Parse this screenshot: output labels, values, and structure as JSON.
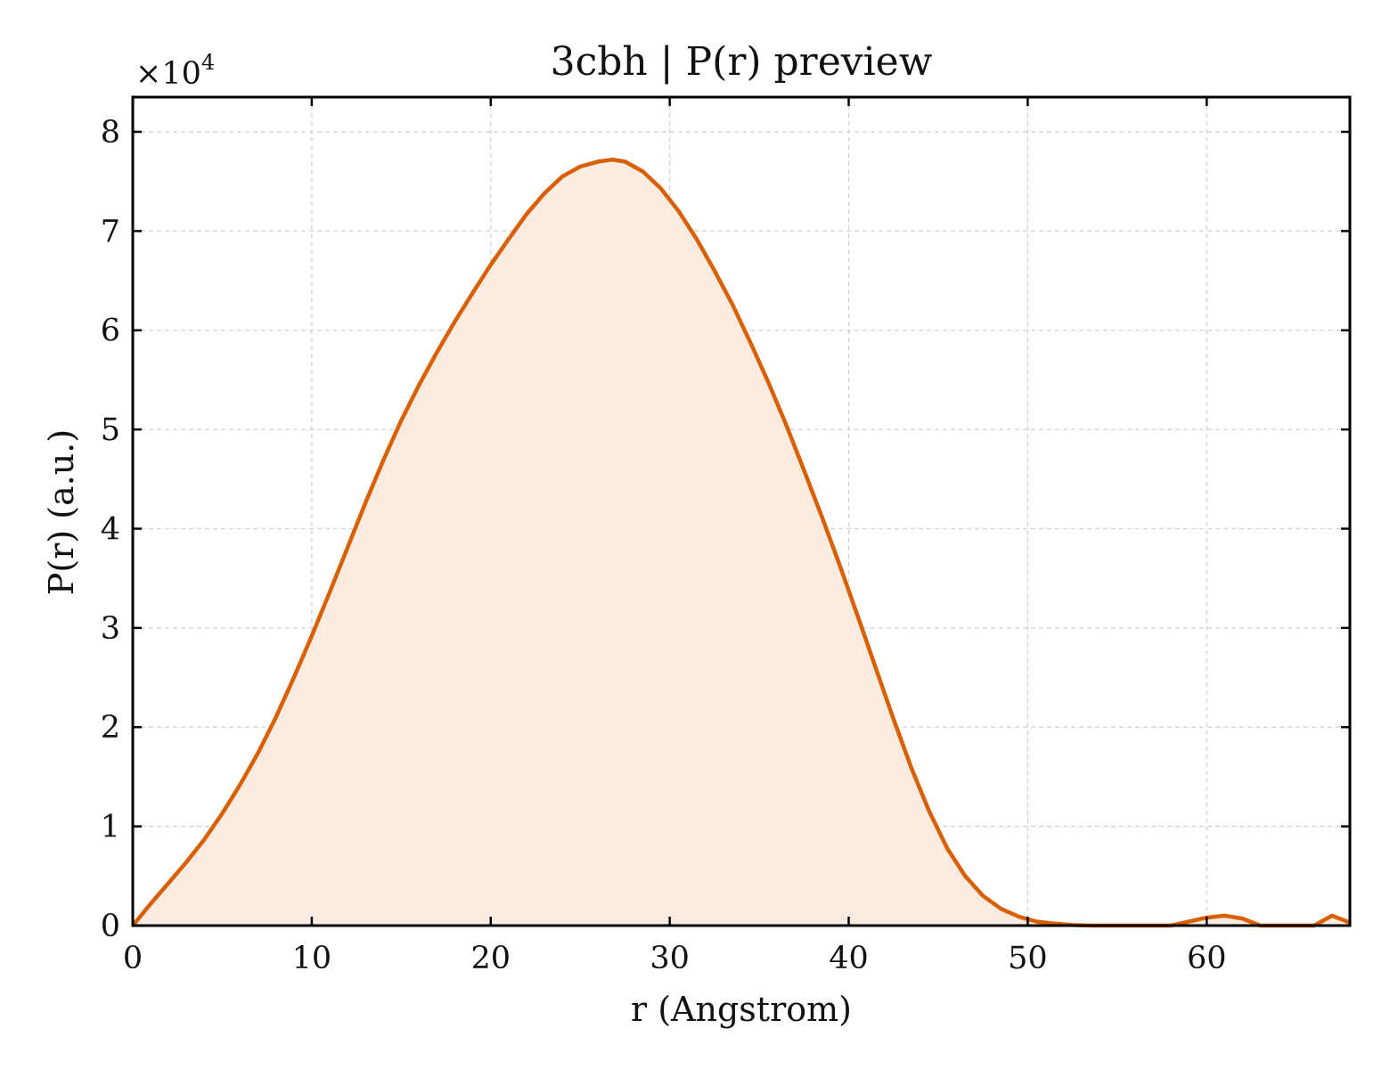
{
  "chart_data": {
    "type": "area",
    "title": "3cbh | P(r) preview",
    "xlabel": "r (Angstrom)",
    "ylabel": "P(r) (a.u.)",
    "y_multiplier": "×10",
    "y_multiplier_exp": "4",
    "xlim": [
      0,
      68
    ],
    "ylim": [
      0,
      8.35
    ],
    "xticks": [
      0,
      10,
      20,
      30,
      40,
      50,
      60
    ],
    "yticks": [
      0,
      1,
      2,
      3,
      4,
      5,
      6,
      7,
      8
    ],
    "xtick_labels": [
      "0",
      "10",
      "20",
      "30",
      "40",
      "50",
      "60"
    ],
    "ytick_labels": [
      "0",
      "1",
      "2",
      "3",
      "4",
      "5",
      "6",
      "7",
      "8"
    ],
    "grid": true,
    "line_color": "#d95f02",
    "fill_color": "#f9ebe0",
    "series": [
      {
        "x": [
          0,
          1,
          2,
          3,
          4,
          5,
          6,
          7,
          8,
          9,
          10,
          11,
          12,
          13,
          14,
          15,
          16,
          17,
          18,
          19,
          20,
          21,
          22,
          23,
          24,
          25,
          26,
          26.8,
          27.5,
          28.5,
          29.5,
          30.5,
          31.5,
          32.5,
          33.5,
          34.5,
          35.5,
          36.5,
          37.5,
          38.5,
          39.5,
          40.5,
          41.5,
          42.5,
          43.5,
          44.5,
          45.5,
          46.5,
          47.5,
          48.5,
          49.5,
          50.5,
          51.5,
          52.5,
          53.5,
          54.5,
          55,
          58,
          59,
          60,
          61,
          62,
          63,
          66,
          67,
          68
        ],
        "y": [
          0,
          0.22,
          0.43,
          0.64,
          0.87,
          1.13,
          1.42,
          1.74,
          2.1,
          2.5,
          2.92,
          3.36,
          3.81,
          4.26,
          4.69,
          5.09,
          5.45,
          5.78,
          6.09,
          6.38,
          6.66,
          6.92,
          7.17,
          7.38,
          7.55,
          7.65,
          7.7,
          7.72,
          7.7,
          7.6,
          7.43,
          7.2,
          6.92,
          6.6,
          6.26,
          5.88,
          5.48,
          5.05,
          4.59,
          4.12,
          3.63,
          3.12,
          2.6,
          2.08,
          1.59,
          1.15,
          0.78,
          0.5,
          0.3,
          0.17,
          0.09,
          0.04,
          0.02,
          0.005,
          0.0,
          0.0,
          0,
          0,
          0.04,
          0.08,
          0.1,
          0.07,
          0,
          0,
          0.1,
          0.03
        ]
      }
    ]
  }
}
